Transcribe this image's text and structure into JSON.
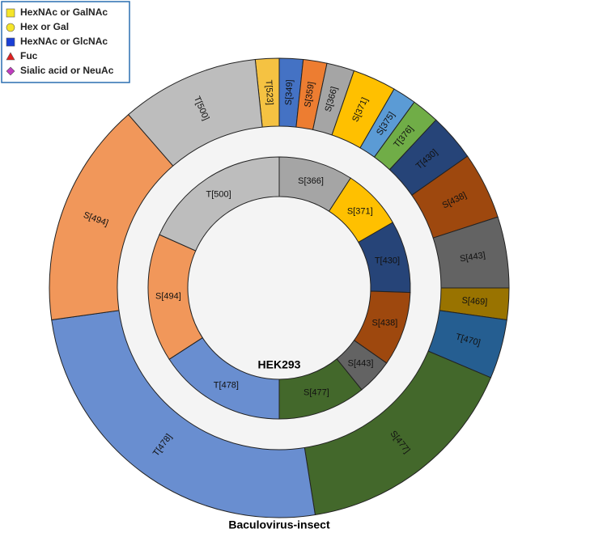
{
  "legend": {
    "items": [
      {
        "label": "HexNAc or GalNAc",
        "shape": "square",
        "color": "#f5e52a"
      },
      {
        "label": "Hex or Gal",
        "shape": "circle",
        "color": "#f5e52a"
      },
      {
        "label": "HexNAc or GlcNAc",
        "shape": "square",
        "color": "#1a3fd6"
      },
      {
        "label": "Fuc",
        "shape": "triangle",
        "color": "#e02020"
      },
      {
        "label": "Sialic acid or NeuAc",
        "shape": "diamond",
        "color": "#c03cc0"
      }
    ]
  },
  "chart_data": [
    {
      "type": "donut",
      "title": "Baculovirus-insect",
      "categories": [
        "T[523]",
        "S[349]",
        "S[359]",
        "S[366]",
        "S[371]",
        "S[375]",
        "T[376]",
        "T[430]",
        "S[438]",
        "S[443]",
        "S[469]",
        "T[470]",
        "S[477]",
        "T[478]",
        "S[494]",
        "T[500]"
      ],
      "values": [
        6,
        6,
        6,
        7,
        11,
        6,
        7,
        12,
        17,
        18,
        8,
        15,
        58,
        91,
        57,
        35
      ],
      "colors": [
        "#f5c242",
        "#4472c4",
        "#ed7d31",
        "#a5a5a5",
        "#ffc000",
        "#5b9bd5",
        "#70ad47",
        "#264478",
        "#9e480e",
        "#636363",
        "#997300",
        "#255e91",
        "#43682b",
        "#698ed0",
        "#f1975a",
        "#bdbdbd"
      ]
    },
    {
      "type": "donut",
      "title": "HEK293",
      "categories": [
        "S[366]",
        "S[371]",
        "T[430]",
        "S[438]",
        "S[443]",
        "S[477]",
        "T[478]",
        "S[494]",
        "T[500]"
      ],
      "values": [
        33,
        27,
        32,
        33,
        16,
        39,
        57,
        57,
        66
      ],
      "colors": [
        "#a5a5a5",
        "#ffc000",
        "#264478",
        "#9e480e",
        "#636363",
        "#43682b",
        "#698ed0",
        "#f1975a",
        "#bdbdbd"
      ]
    }
  ]
}
